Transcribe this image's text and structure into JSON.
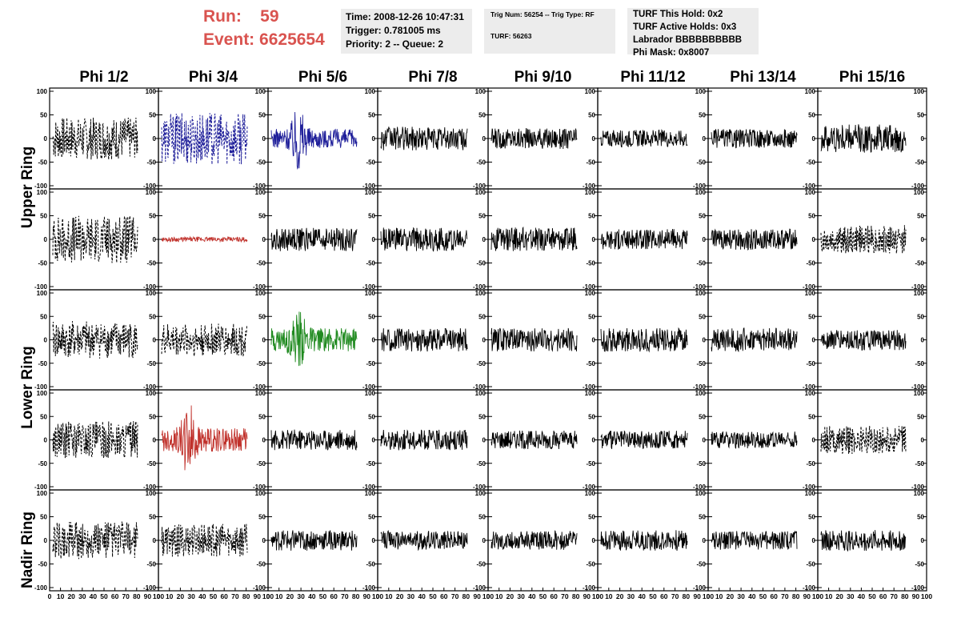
{
  "header": {
    "run_label": "Run:",
    "run_value": "59",
    "event_label": "Event:",
    "event_value": "6625654",
    "time": "Time: 2008-12-26 10:47:31",
    "trigger": "Trigger: 0.781005 ms",
    "priority": "Priority: 2 -- Queue: 2",
    "trig_num": "Trig Num: 56254 -- Trig Type: RF",
    "turf": "TURF: 56263",
    "turf_hold": "TURF This Hold: 0x2",
    "turf_active": "TURF Active Holds: 0x3",
    "labrador": "Labrador BBBBBBBBBB",
    "phi_mask": "Phi Mask: 0x8007"
  },
  "columns": [
    "Phi 1/2",
    "Phi 3/4",
    "Phi 5/6",
    "Phi 7/8",
    "Phi 9/10",
    "Phi 11/12",
    "Phi 13/14",
    "Phi 15/16"
  ],
  "row_labels": [
    "Upper Ring",
    "Lower Ring",
    "Nadir Ring"
  ],
  "axes": {
    "y_ticks": [
      "100",
      "50",
      "0",
      "-50",
      "-100"
    ],
    "x_ticks": [
      "0",
      "10",
      "20",
      "30",
      "40",
      "50",
      "60",
      "70",
      "80",
      "90",
      "100"
    ],
    "ylim": [
      -100,
      100
    ],
    "xlim": [
      0,
      100
    ]
  },
  "colors": {
    "header_red": "#d9534f",
    "trace_black": "#000000",
    "trace_blue": "#1f1f9a",
    "trace_red": "#c0302a",
    "trace_green": "#1f8a1f",
    "info_bg": "#ececec"
  },
  "panels": [
    {
      "row": 0,
      "col": 0,
      "style": "dashed",
      "color": "black",
      "amp": 45,
      "burst": 0
    },
    {
      "row": 0,
      "col": 1,
      "style": "dashed",
      "color": "blue",
      "amp": 55,
      "burst": 0
    },
    {
      "row": 0,
      "col": 2,
      "style": "solid",
      "color": "blue",
      "amp": 20,
      "burst": 75
    },
    {
      "row": 0,
      "col": 3,
      "style": "solid",
      "color": "black",
      "amp": 25,
      "burst": 0
    },
    {
      "row": 0,
      "col": 4,
      "style": "solid",
      "color": "black",
      "amp": 22,
      "burst": 0
    },
    {
      "row": 0,
      "col": 5,
      "style": "solid",
      "color": "black",
      "amp": 18,
      "burst": 0
    },
    {
      "row": 0,
      "col": 6,
      "style": "solid",
      "color": "black",
      "amp": 20,
      "burst": 0
    },
    {
      "row": 0,
      "col": 7,
      "style": "solid",
      "color": "black",
      "amp": 30,
      "burst": 0
    },
    {
      "row": 1,
      "col": 0,
      "style": "dashed",
      "color": "black",
      "amp": 50,
      "burst": 0
    },
    {
      "row": 1,
      "col": 1,
      "style": "solid",
      "color": "red",
      "amp": 5,
      "burst": 0
    },
    {
      "row": 1,
      "col": 2,
      "style": "solid",
      "color": "black",
      "amp": 25,
      "burst": 0
    },
    {
      "row": 1,
      "col": 3,
      "style": "solid",
      "color": "black",
      "amp": 25,
      "burst": 0
    },
    {
      "row": 1,
      "col": 4,
      "style": "solid",
      "color": "black",
      "amp": 25,
      "burst": 0
    },
    {
      "row": 1,
      "col": 5,
      "style": "solid",
      "color": "black",
      "amp": 22,
      "burst": 0
    },
    {
      "row": 1,
      "col": 6,
      "style": "solid",
      "color": "black",
      "amp": 22,
      "burst": 0
    },
    {
      "row": 1,
      "col": 7,
      "style": "dashed",
      "color": "black",
      "amp": 30,
      "burst": 0
    },
    {
      "row": 2,
      "col": 0,
      "style": "dashed",
      "color": "black",
      "amp": 40,
      "burst": 0
    },
    {
      "row": 2,
      "col": 1,
      "style": "dashed",
      "color": "black",
      "amp": 35,
      "burst": 0
    },
    {
      "row": 2,
      "col": 2,
      "style": "solid",
      "color": "green",
      "amp": 25,
      "burst": 65
    },
    {
      "row": 2,
      "col": 3,
      "style": "solid",
      "color": "black",
      "amp": 25,
      "burst": 0
    },
    {
      "row": 2,
      "col": 4,
      "style": "solid",
      "color": "black",
      "amp": 25,
      "burst": 0
    },
    {
      "row": 2,
      "col": 5,
      "style": "solid",
      "color": "black",
      "amp": 25,
      "burst": 0
    },
    {
      "row": 2,
      "col": 6,
      "style": "solid",
      "color": "black",
      "amp": 25,
      "burst": 0
    },
    {
      "row": 2,
      "col": 7,
      "style": "solid",
      "color": "black",
      "amp": 22,
      "burst": 0
    },
    {
      "row": 3,
      "col": 0,
      "style": "dashed",
      "color": "black",
      "amp": 40,
      "burst": 0
    },
    {
      "row": 3,
      "col": 1,
      "style": "solid",
      "color": "red",
      "amp": 25,
      "burst": 85
    },
    {
      "row": 3,
      "col": 2,
      "style": "solid",
      "color": "black",
      "amp": 22,
      "burst": 0
    },
    {
      "row": 3,
      "col": 3,
      "style": "solid",
      "color": "black",
      "amp": 22,
      "burst": 0
    },
    {
      "row": 3,
      "col": 4,
      "style": "solid",
      "color": "black",
      "amp": 20,
      "burst": 0
    },
    {
      "row": 3,
      "col": 5,
      "style": "solid",
      "color": "black",
      "amp": 20,
      "burst": 0
    },
    {
      "row": 3,
      "col": 6,
      "style": "solid",
      "color": "black",
      "amp": 18,
      "burst": 0
    },
    {
      "row": 3,
      "col": 7,
      "style": "dashed",
      "color": "black",
      "amp": 30,
      "burst": 0
    },
    {
      "row": 4,
      "col": 0,
      "style": "dashed",
      "color": "black",
      "amp": 40,
      "burst": 0
    },
    {
      "row": 4,
      "col": 1,
      "style": "dashed",
      "color": "black",
      "amp": 35,
      "burst": 0
    },
    {
      "row": 4,
      "col": 2,
      "style": "solid",
      "color": "black",
      "amp": 22,
      "burst": 0
    },
    {
      "row": 4,
      "col": 3,
      "style": "solid",
      "color": "black",
      "amp": 20,
      "burst": 0
    },
    {
      "row": 4,
      "col": 4,
      "style": "solid",
      "color": "black",
      "amp": 20,
      "burst": 0
    },
    {
      "row": 4,
      "col": 5,
      "style": "solid",
      "color": "black",
      "amp": 22,
      "burst": 0
    },
    {
      "row": 4,
      "col": 6,
      "style": "solid",
      "color": "black",
      "amp": 20,
      "burst": 0
    },
    {
      "row": 4,
      "col": 7,
      "style": "solid",
      "color": "black",
      "amp": 22,
      "burst": 0
    }
  ]
}
